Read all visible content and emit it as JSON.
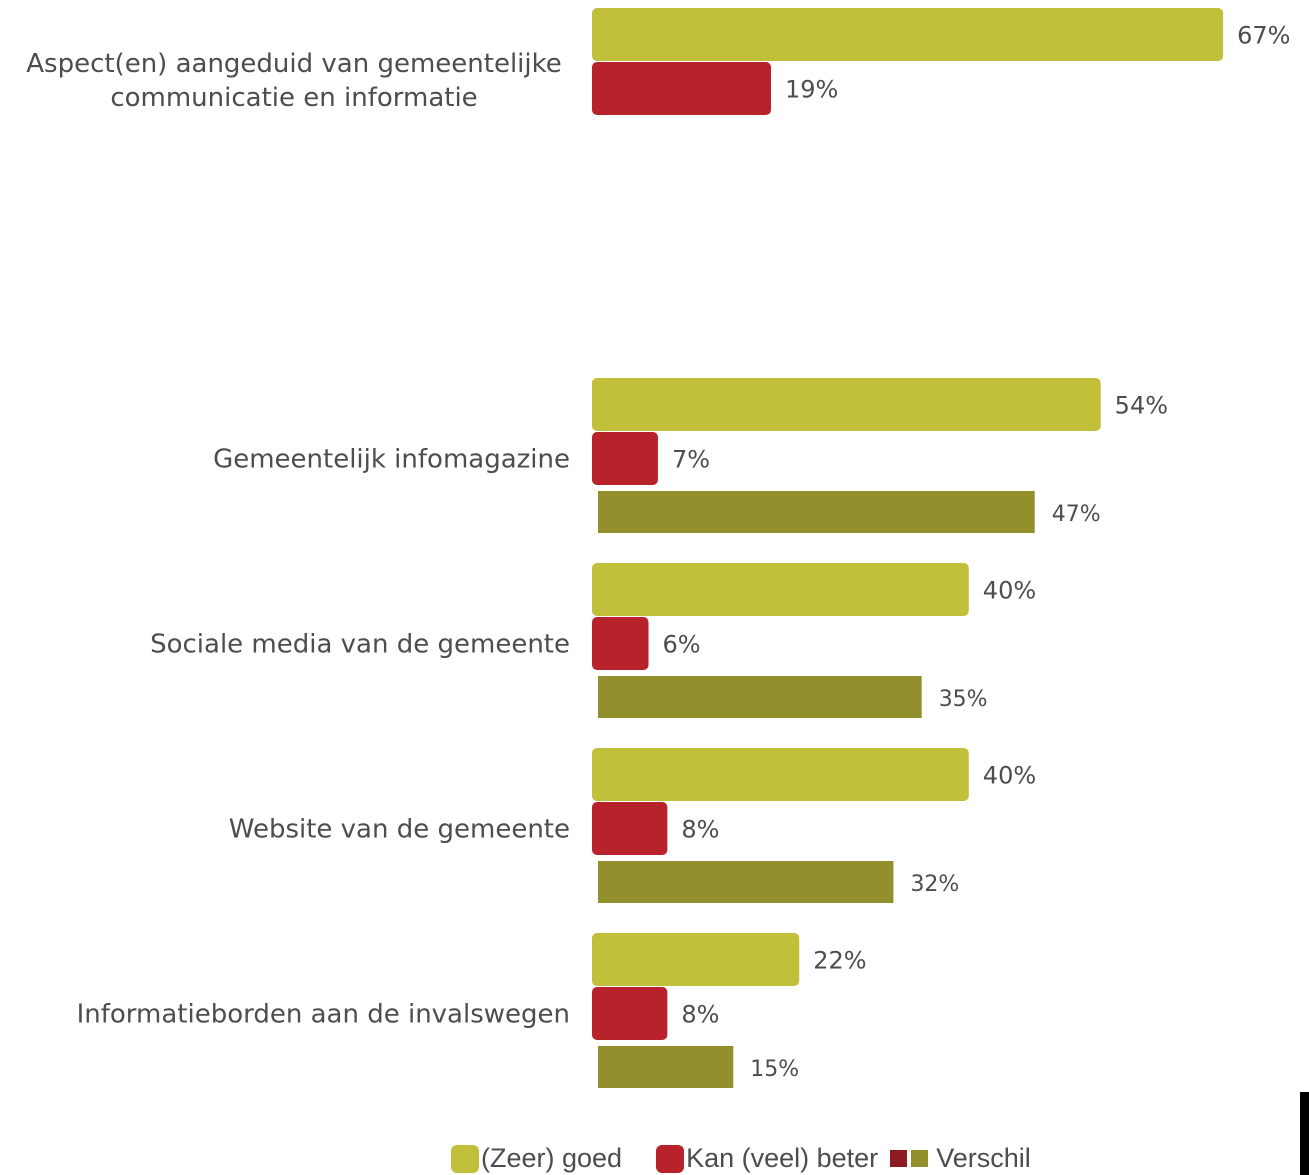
{
  "chart_data": {
    "type": "bar",
    "orientation": "horizontal",
    "categories": [
      "Aspect(en) aangeduid van gemeentelijke\ncommunicatie en informatie",
      "Gemeentelijk infomagazine",
      "Sociale media van de gemeente",
      "Website van de gemeente",
      "Informatieborden aan de invalswegen"
    ],
    "series": [
      {
        "name": "(Zeer) goed",
        "values": [
          67,
          54,
          40,
          40,
          22
        ],
        "labels": [
          "67%",
          "54%",
          "40%",
          "40%",
          "22%"
        ],
        "color": "#c2bf3a"
      },
      {
        "name": "Kan (veel) beter",
        "values": [
          19,
          7,
          6,
          8,
          8
        ],
        "labels": [
          "19%",
          "7%",
          "6%",
          "8%",
          "8%"
        ],
        "color": "#b8222a"
      },
      {
        "name": "Verschil",
        "values": [
          null,
          47,
          35,
          32,
          15
        ],
        "labels": [
          null,
          "47%",
          "35%",
          "32%",
          "15%"
        ],
        "color": "#938f2d"
      }
    ],
    "legend": {
      "position": "bottom",
      "items": [
        {
          "label": "(Zeer) goed",
          "swatches": [
            "#c2bf3a"
          ]
        },
        {
          "label": "Kan (veel) beter",
          "swatches": [
            "#b8222a"
          ]
        },
        {
          "label": "Verschil",
          "swatches": [
            "#8e1c22",
            "#938f2d"
          ]
        }
      ]
    },
    "colors": {
      "label_text": "#4d4d4d",
      "diff_label_text": "#938f2d"
    },
    "grid": false
  }
}
